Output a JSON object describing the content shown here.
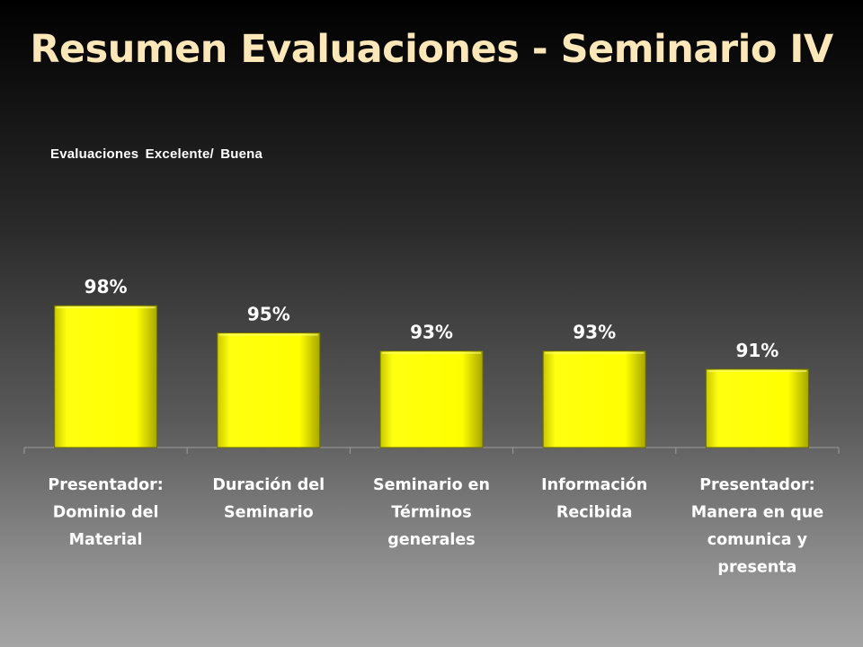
{
  "title": "Resumen Evaluaciones - Seminario IV",
  "chart_data": {
    "type": "bar",
    "subtitle": "Evaluaciones Excelente/ Buena",
    "categories": [
      [
        "Presentador:",
        "Dominio del",
        "Material"
      ],
      [
        "Duración del",
        "Seminario"
      ],
      [
        "Seminario en",
        "Términos",
        "generales"
      ],
      [
        "Información",
        "Recibida"
      ],
      [
        "Presentador:",
        "Manera en que",
        "comunica y",
        "presenta"
      ]
    ],
    "values": [
      98,
      95,
      93,
      93,
      91
    ],
    "data_labels": [
      "98%",
      "95%",
      "93%",
      "93%",
      "91%"
    ],
    "bar_color": "#ffff00",
    "axis_color": "#9a9a9a",
    "ylim": [
      80,
      100
    ],
    "grid": false,
    "legend": false
  }
}
